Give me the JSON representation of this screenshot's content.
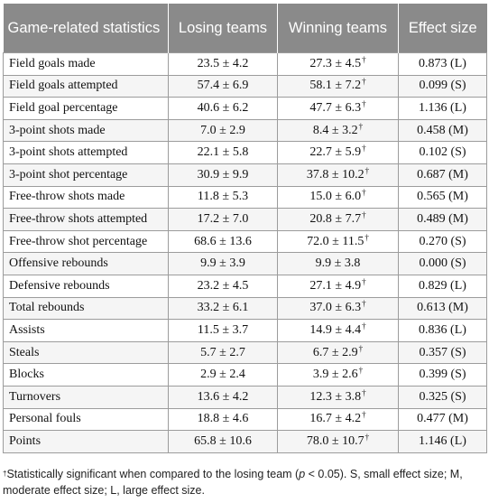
{
  "table": {
    "headers": {
      "stat": "Game-related statistics",
      "losing": "Losing teams",
      "winning": "Winning teams",
      "effect": "Effect size"
    },
    "dagger": "†",
    "rows": [
      {
        "stat": "Field goals made",
        "losing": "23.5 ± 4.2",
        "winning": "27.3 ± 4.5",
        "sig": true,
        "effect": "0.873 (L)"
      },
      {
        "stat": "Field goals attempted",
        "losing": "57.4 ± 6.9",
        "winning": "58.1 ± 7.2",
        "sig": true,
        "effect": "0.099 (S)"
      },
      {
        "stat": "Field goal percentage",
        "losing": "40.6 ± 6.2",
        "winning": "47.7 ± 6.3",
        "sig": true,
        "effect": "1.136 (L)"
      },
      {
        "stat": "3-point shots made",
        "losing": "7.0 ± 2.9",
        "winning": "8.4 ± 3.2",
        "sig": true,
        "effect": "0.458 (M)"
      },
      {
        "stat": "3-point shots attempted",
        "losing": "22.1 ± 5.8",
        "winning": "22.7 ± 5.9",
        "sig": true,
        "effect": "0.102 (S)"
      },
      {
        "stat": "3-point shot percentage",
        "losing": "30.9 ± 9.9",
        "winning": "37.8 ± 10.2",
        "sig": true,
        "effect": "0.687 (M)"
      },
      {
        "stat": "Free-throw shots made",
        "losing": "11.8 ± 5.3",
        "winning": "15.0 ± 6.0",
        "sig": true,
        "effect": "0.565 (M)"
      },
      {
        "stat": "Free-throw shots attempted",
        "losing": "17.2 ± 7.0",
        "winning": "20.8 ± 7.7",
        "sig": true,
        "effect": "0.489 (M)"
      },
      {
        "stat": "Free-throw shot percentage",
        "losing": "68.6 ± 13.6",
        "winning": "72.0 ± 11.5",
        "sig": true,
        "effect": "0.270 (S)"
      },
      {
        "stat": "Offensive rebounds",
        "losing": "9.9 ± 3.9",
        "winning": "9.9 ± 3.8",
        "sig": false,
        "effect": "0.000 (S)"
      },
      {
        "stat": "Defensive rebounds",
        "losing": "23.2 ± 4.5",
        "winning": "27.1 ± 4.9",
        "sig": true,
        "effect": "0.829 (L)"
      },
      {
        "stat": "Total rebounds",
        "losing": "33.2 ± 6.1",
        "winning": "37.0 ± 6.3",
        "sig": true,
        "effect": "0.613 (M)"
      },
      {
        "stat": "Assists",
        "losing": "11.5 ± 3.7",
        "winning": "14.9 ± 4.4",
        "sig": true,
        "effect": "0.836 (L)"
      },
      {
        "stat": "Steals",
        "losing": "5.7 ± 2.7",
        "winning": "6.7 ± 2.9",
        "sig": true,
        "effect": "0.357 (S)"
      },
      {
        "stat": "Blocks",
        "losing": "2.9 ± 2.4",
        "winning": "3.9 ± 2.6",
        "sig": true,
        "effect": "0.399 (S)"
      },
      {
        "stat": "Turnovers",
        "losing": "13.6 ± 4.2",
        "winning": "12.3 ± 3.8",
        "sig": true,
        "effect": "0.325 (S)"
      },
      {
        "stat": "Personal fouls",
        "losing": "18.8 ± 4.6",
        "winning": "16.7 ± 4.2",
        "sig": true,
        "effect": "0.477 (M)"
      },
      {
        "stat": "Points",
        "losing": "65.8 ± 10.6",
        "winning": "78.0 ± 10.7",
        "sig": true,
        "effect": "1.146 (L)"
      }
    ]
  },
  "footnote": {
    "marker": "†",
    "text_before_p": "Statistically significant when compared to the losing team (",
    "p": "p",
    "text_after_p": " < 0.05). S, small effect size; M, moderate effect size; L, large effect size."
  }
}
